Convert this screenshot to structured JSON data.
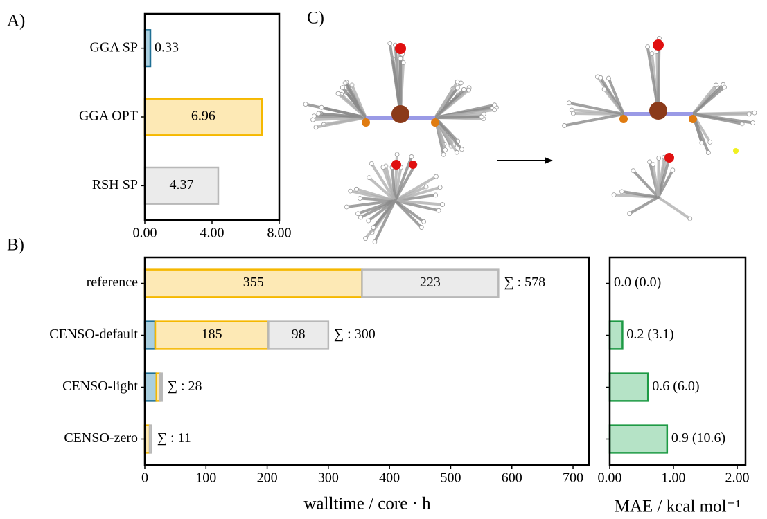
{
  "chart_data": [
    {
      "type": "barh",
      "label": "A)",
      "categories": [
        "GGA SP",
        "GGA OPT",
        "RSH SP"
      ],
      "values": [
        0.33,
        6.96,
        4.37
      ],
      "colors": [
        "#a9cfe0",
        "#fde9b5",
        "#ebebeb"
      ],
      "edgecolors": [
        "#1f6f94",
        "#f5b800",
        "#b8b8b8"
      ],
      "xlim": [
        0,
        8
      ],
      "xticks": [
        {
          "value": 0,
          "label": "0.00"
        },
        {
          "value": 4,
          "label": "4.00"
        },
        {
          "value": 8,
          "label": "8.00"
        }
      ]
    },
    {
      "type": "stacked_barh",
      "label": "B)",
      "xlabel": "walltime / core · h",
      "categories": [
        "reference",
        "CENSO-default",
        "CENSO-light",
        "CENSO-zero"
      ],
      "series": [
        {
          "name": "GGA SP",
          "color": "#a9cfe0",
          "edgecolor": "#1f6f94",
          "values": [
            0,
            17,
            19,
            0
          ],
          "show_value_labels": [
            false,
            false,
            false,
            false
          ]
        },
        {
          "name": "GGA OPT",
          "color": "#fde9b5",
          "edgecolor": "#f5b800",
          "values": [
            355,
            185,
            6,
            8
          ],
          "show_value_labels": [
            true,
            true,
            false,
            false
          ]
        },
        {
          "name": "RSH SP",
          "color": "#ebebeb",
          "edgecolor": "#b8b8b8",
          "values": [
            223,
            98,
            3,
            3
          ],
          "show_value_labels": [
            true,
            true,
            false,
            false
          ]
        }
      ],
      "total_labels": [
        "∑ : 578",
        "∑ : 300",
        "∑ : 28",
        "∑ : 11"
      ],
      "xlim": [
        0,
        726
      ],
      "xticks": [
        0,
        100,
        200,
        300,
        400,
        500,
        600,
        700
      ]
    },
    {
      "type": "barh",
      "xlabel": "MAE / kcal mol⁻¹",
      "values": [
        0.0,
        0.2,
        0.6,
        0.9
      ],
      "value_labels": [
        "0.0 (0.0)",
        "0.2 (3.1)",
        "0.6 (6.0)",
        "0.9 (10.6)"
      ],
      "color": "#b5e3c6",
      "edgecolor": "#1e9a45",
      "xlim": [
        0,
        2.13
      ],
      "xticks": [
        {
          "value": 0,
          "label": "0.00"
        },
        {
          "value": 1,
          "label": "1.00"
        },
        {
          "value": 2,
          "label": "2.00"
        }
      ]
    }
  ],
  "image_panel": {
    "label": "C)"
  }
}
